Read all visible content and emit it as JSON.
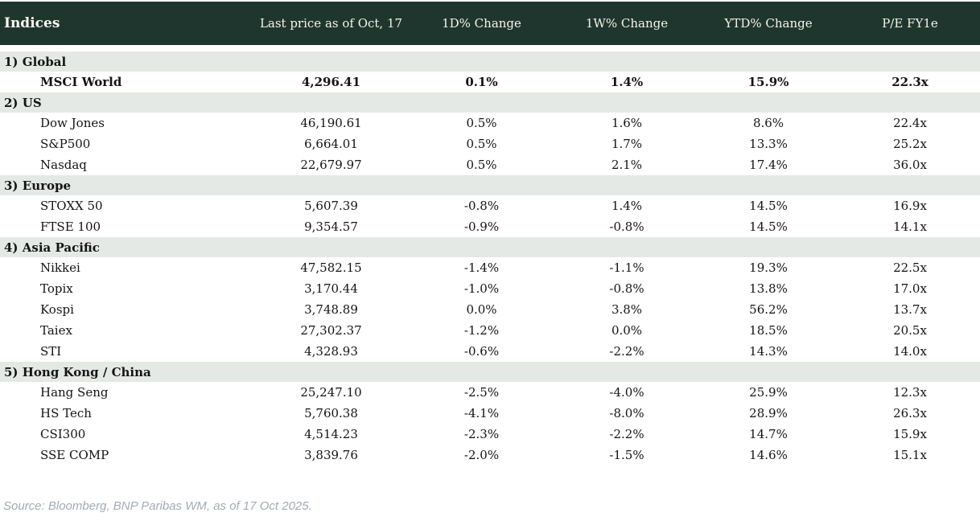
{
  "colors": {
    "header_bg": "#1f362f",
    "header_text": "#f6f3e7",
    "section_bg": "#e5e9e6",
    "positive": "#00963a",
    "negative": "#c8102e",
    "source_text": "#a3abb3"
  },
  "chart_data": {
    "type": "table",
    "title": "Indices",
    "columns": [
      "Last price as of Oct, 17",
      "1D% Change",
      "1W% Change",
      "YTD% Change",
      "P/E FY1e"
    ],
    "sections": [
      {
        "label": "1) Global",
        "rows": [
          {
            "name": "MSCI World",
            "bold": true,
            "last": "4,296.41",
            "d1": "0.1%",
            "w1": "1.4%",
            "ytd": "15.9%",
            "pe": "22.3x"
          }
        ]
      },
      {
        "label": "2) US",
        "rows": [
          {
            "name": "Dow Jones",
            "last": "46,190.61",
            "d1": "0.5%",
            "w1": "1.6%",
            "ytd": "8.6%",
            "pe": "22.4x"
          },
          {
            "name": "S&P500",
            "last": "6,664.01",
            "d1": "0.5%",
            "w1": "1.7%",
            "ytd": "13.3%",
            "pe": "25.2x"
          },
          {
            "name": "Nasdaq",
            "last": "22,679.97",
            "d1": "0.5%",
            "w1": "2.1%",
            "ytd": "17.4%",
            "pe": "36.0x"
          }
        ]
      },
      {
        "label": "3) Europe",
        "rows": [
          {
            "name": "STOXX 50",
            "last": "5,607.39",
            "d1": "-0.8%",
            "w1": "1.4%",
            "ytd": "14.5%",
            "pe": "16.9x"
          },
          {
            "name": "FTSE 100",
            "last": "9,354.57",
            "d1": "-0.9%",
            "w1": "-0.8%",
            "ytd": "14.5%",
            "pe": "14.1x"
          }
        ]
      },
      {
        "label": "4) Asia Pacific",
        "rows": [
          {
            "name": "Nikkei",
            "last": "47,582.15",
            "d1": "-1.4%",
            "w1": "-1.1%",
            "ytd": "19.3%",
            "pe": "22.5x"
          },
          {
            "name": "Topix",
            "last": "3,170.44",
            "d1": "-1.0%",
            "w1": "-0.8%",
            "ytd": "13.8%",
            "pe": "17.0x"
          },
          {
            "name": "Kospi",
            "last": "3,748.89",
            "d1": "0.0%",
            "w1": "3.8%",
            "ytd": "56.2%",
            "pe": "13.7x"
          },
          {
            "name": "Taiex",
            "last": "27,302.37",
            "d1": "-1.2%",
            "w1": "0.0%",
            "ytd": "18.5%",
            "pe": "20.5x"
          },
          {
            "name": "STI",
            "last": "4,328.93",
            "d1": "-0.6%",
            "w1": "-2.2%",
            "ytd": "14.3%",
            "pe": "14.0x"
          }
        ]
      },
      {
        "label": "5) Hong Kong / China",
        "rows": [
          {
            "name": "Hang Seng",
            "last": "25,247.10",
            "d1": "-2.5%",
            "w1": "-4.0%",
            "ytd": "25.9%",
            "pe": "12.3x"
          },
          {
            "name": "HS Tech",
            "last": "5,760.38",
            "d1": "-4.1%",
            "w1": "-8.0%",
            "ytd": "28.9%",
            "pe": "26.3x"
          },
          {
            "name": "CSI300",
            "last": "4,514.23",
            "d1": "-2.3%",
            "w1": "-2.2%",
            "ytd": "14.7%",
            "pe": "15.9x"
          },
          {
            "name": "SSE COMP",
            "last": "3,839.76",
            "d1": "-2.0%",
            "w1": "-1.5%",
            "ytd": "14.6%",
            "pe": "15.1x"
          }
        ]
      }
    ],
    "source": "Source: Bloomberg, BNP Paribas WM, as of 17 Oct 2025."
  }
}
